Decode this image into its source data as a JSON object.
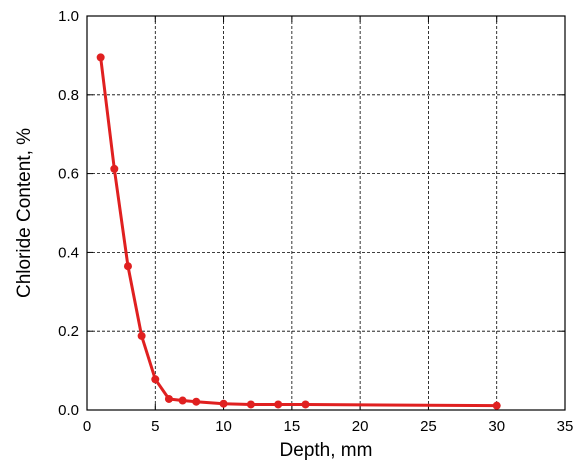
{
  "chart_data": {
    "type": "line",
    "title": "",
    "xlabel": "Depth, mm",
    "ylabel": "Chloride Content, %",
    "xlim": [
      0,
      35
    ],
    "ylim": [
      0.0,
      1.0
    ],
    "x_ticks": [
      "0",
      "5",
      "10",
      "15",
      "20",
      "25",
      "30",
      "35"
    ],
    "y_ticks": [
      "0.0",
      "0.2",
      "0.4",
      "0.6",
      "0.8",
      "1.0"
    ],
    "grid": true,
    "legend": "none",
    "series": [
      {
        "color": "#e02020",
        "x": [
          1,
          2,
          3,
          4,
          5,
          6,
          7,
          8,
          10,
          12,
          14,
          16,
          30
        ],
        "y": [
          0.895,
          0.612,
          0.365,
          0.188,
          0.078,
          0.028,
          0.024,
          0.021,
          0.016,
          0.014,
          0.014,
          0.014,
          0.011
        ]
      }
    ]
  }
}
